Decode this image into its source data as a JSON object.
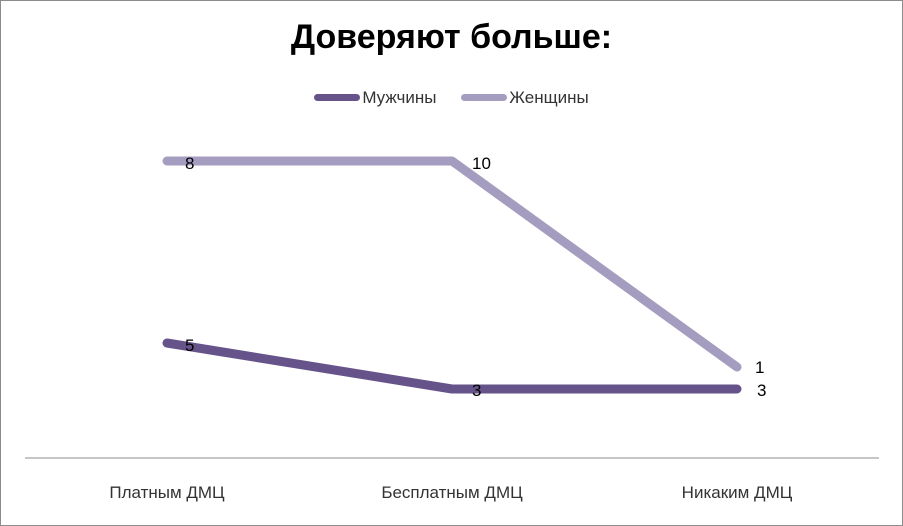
{
  "chart_data": {
    "type": "line",
    "title": "Доверяют больше:",
    "categories": [
      "Платным ДМЦ",
      "Бесплатным ДМЦ",
      "Никаким ДМЦ"
    ],
    "series": [
      {
        "name": "Мужчины",
        "values": [
          5,
          3,
          3
        ],
        "color": "#66538a"
      },
      {
        "name": "Женщины",
        "values": [
          8,
          10,
          1
        ],
        "color": "#a59dbf"
      }
    ],
    "legend_position": "top",
    "grid": false
  }
}
